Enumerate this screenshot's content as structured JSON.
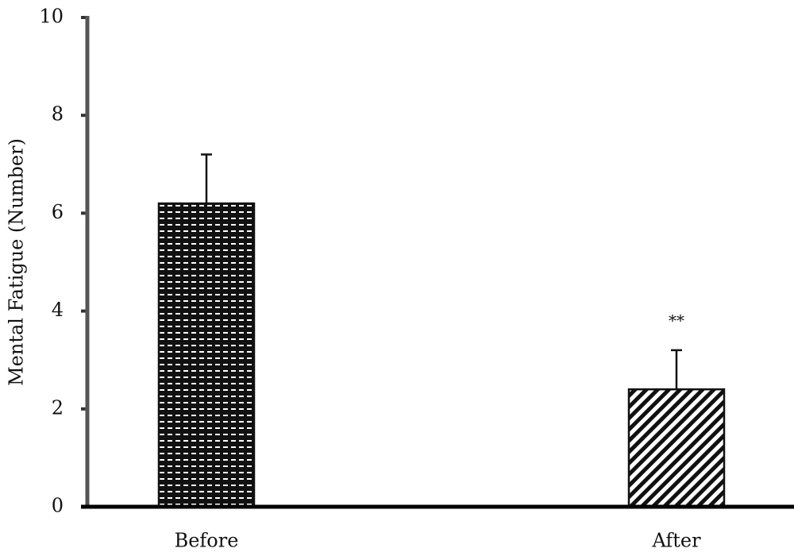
{
  "chart_data": {
    "type": "bar",
    "y_label": "Mental Fatigue (Number)",
    "categories": [
      "Before",
      "After"
    ],
    "values": [
      6.2,
      2.4
    ],
    "errors": [
      1.0,
      0.8
    ],
    "value_annotations": [
      null,
      "**"
    ],
    "patterns": [
      "dots",
      "diagonal"
    ],
    "ylim": [
      0,
      10
    ],
    "yticks": [
      0,
      2,
      4,
      6,
      8,
      10
    ],
    "grid": false
  }
}
